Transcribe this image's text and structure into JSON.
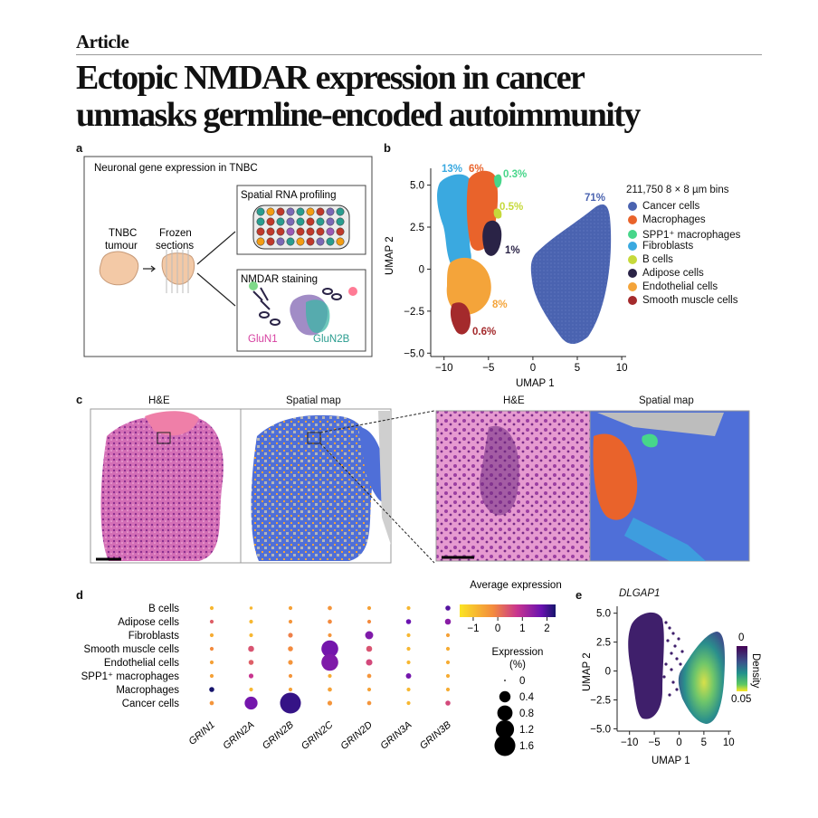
{
  "header": {
    "article_label": "Article",
    "title_line1": "Ectopic NMDAR expression in cancer",
    "title_line2": "unmasks germline-encoded autoimmunity"
  },
  "panel_a": {
    "label": "a",
    "heading": "Neuronal gene expression in TNBC",
    "tumour_line1": "TNBC",
    "tumour_line2": "tumour",
    "frozen_line1": "Frozen",
    "frozen_line2": "sections",
    "spatial_title": "Spatial RNA profiling",
    "nmdar_title": "NMDAR staining",
    "glun1": "GluN1",
    "glun2b": "GluN2B"
  },
  "panel_b": {
    "label": "b",
    "bins_label": "211,750 8 × 8 µm bins",
    "legend": [
      {
        "name": "Cancer cells",
        "color": "#4a63b0"
      },
      {
        "name": "Macrophages",
        "color": "#e9632b"
      },
      {
        "name": "SPP1⁺ macrophages",
        "color": "#47d68a"
      },
      {
        "name": "Fibroblasts",
        "color": "#3aa9e0"
      },
      {
        "name": "B cells",
        "color": "#c6d93b"
      },
      {
        "name": "Adipose cells",
        "color": "#2a2346"
      },
      {
        "name": "Endothelial cells",
        "color": "#f4a43a"
      },
      {
        "name": "Smooth muscle cells",
        "color": "#a42a2c"
      }
    ],
    "percent_labels": {
      "fibroblasts": "13%",
      "macrophages": "6%",
      "spp1": "0.3%",
      "bcells": "0.5%",
      "adipose": "1%",
      "endothelial": "8%",
      "smooth": "0.6%",
      "cancer": "71%"
    },
    "xlabel": "UMAP 1",
    "ylabel": "UMAP 2",
    "xticks": [
      "−10",
      "−5",
      "0",
      "5",
      "10"
    ],
    "yticks": [
      "5.0",
      "2.5",
      "0",
      "−2.5",
      "−5.0"
    ]
  },
  "panel_c": {
    "label": "c",
    "he_title": "H&E",
    "spatial_title": "Spatial map",
    "he_zoom_title": "H&E",
    "spatial_zoom_title": "Spatial map"
  },
  "chart_data": [
    {
      "type": "scatter",
      "title": "",
      "xlabel": "",
      "ylabel": "",
      "categories_x": [
        "GRIN1",
        "GRIN2A",
        "GRIN2B",
        "GRIN2C",
        "GRIN2D",
        "GRIN3A",
        "GRIN3B"
      ],
      "categories_y": [
        "B cells",
        "Adipose cells",
        "Fibroblasts",
        "Smooth muscle cells",
        "Endothelial cells",
        "SPP1⁺ macrophages",
        "Macrophages",
        "Cancer cells"
      ],
      "color_legend_title": "Average expression",
      "color_ticks": [
        "−1",
        "0",
        "1",
        "2"
      ],
      "size_legend_title": "Expression (%)",
      "size_legend_title_line1": "Expression",
      "size_legend_title_line2": "(%)",
      "size_legend": [
        "0",
        "0.4",
        "0.8",
        "1.2",
        "1.6"
      ],
      "size_legend_values": [
        0,
        0.4,
        0.8,
        1.2,
        1.6
      ],
      "points": [
        {
          "gene": "GRIN1",
          "cell": "B cells",
          "pct": 0.02,
          "expr": -0.6
        },
        {
          "gene": "GRIN1",
          "cell": "Adipose cells",
          "pct": 0.02,
          "expr": 0.2
        },
        {
          "gene": "GRIN1",
          "cell": "Fibroblasts",
          "pct": 0.02,
          "expr": -0.5
        },
        {
          "gene": "GRIN1",
          "cell": "Smooth muscle cells",
          "pct": 0.02,
          "expr": -0.2
        },
        {
          "gene": "GRIN1",
          "cell": "Endothelial cells",
          "pct": 0.02,
          "expr": -0.4
        },
        {
          "gene": "GRIN1",
          "cell": "SPP1⁺ macrophages",
          "pct": 0.02,
          "expr": -0.4
        },
        {
          "gene": "GRIN1",
          "cell": "Macrophages",
          "pct": 0.05,
          "expr": 2.3
        },
        {
          "gene": "GRIN1",
          "cell": "Cancer cells",
          "pct": 0.03,
          "expr": -0.3
        },
        {
          "gene": "GRIN2A",
          "cell": "B cells",
          "pct": 0.01,
          "expr": -0.6
        },
        {
          "gene": "GRIN2A",
          "cell": "Adipose cells",
          "pct": 0.02,
          "expr": -0.6
        },
        {
          "gene": "GRIN2A",
          "cell": "Fibroblasts",
          "pct": 0.02,
          "expr": -0.6
        },
        {
          "gene": "GRIN2A",
          "cell": "Smooth muscle cells",
          "pct": 0.08,
          "expr": 0.3
        },
        {
          "gene": "GRIN2A",
          "cell": "Endothelial cells",
          "pct": 0.05,
          "expr": 0.2
        },
        {
          "gene": "GRIN2A",
          "cell": "SPP1⁺ macrophages",
          "pct": 0.04,
          "expr": 0.6
        },
        {
          "gene": "GRIN2A",
          "cell": "Macrophages",
          "pct": 0.02,
          "expr": -0.6
        },
        {
          "gene": "GRIN2A",
          "cell": "Cancer cells",
          "pct": 0.55,
          "expr": 1.4
        },
        {
          "gene": "GRIN2B",
          "cell": "B cells",
          "pct": 0.02,
          "expr": -0.4
        },
        {
          "gene": "GRIN2B",
          "cell": "Adipose cells",
          "pct": 0.02,
          "expr": -0.3
        },
        {
          "gene": "GRIN2B",
          "cell": "Fibroblasts",
          "pct": 0.04,
          "expr": -0.1
        },
        {
          "gene": "GRIN2B",
          "cell": "Smooth muscle cells",
          "pct": 0.05,
          "expr": -0.2
        },
        {
          "gene": "GRIN2B",
          "cell": "Endothelial cells",
          "pct": 0.04,
          "expr": -0.3
        },
        {
          "gene": "GRIN2B",
          "cell": "SPP1⁺ macrophages",
          "pct": 0.02,
          "expr": -0.3
        },
        {
          "gene": "GRIN2B",
          "cell": "Macrophages",
          "pct": 0.02,
          "expr": -0.4
        },
        {
          "gene": "GRIN2B",
          "cell": "Cancer cells",
          "pct": 1.6,
          "expr": 2.0
        },
        {
          "gene": "GRIN2C",
          "cell": "B cells",
          "pct": 0.03,
          "expr": -0.3
        },
        {
          "gene": "GRIN2C",
          "cell": "Adipose cells",
          "pct": 0.03,
          "expr": -0.2
        },
        {
          "gene": "GRIN2C",
          "cell": "Fibroblasts",
          "pct": 0.02,
          "expr": -0.3
        },
        {
          "gene": "GRIN2C",
          "cell": "Smooth muscle cells",
          "pct": 1.0,
          "expr": 1.4
        },
        {
          "gene": "GRIN2C",
          "cell": "Endothelial cells",
          "pct": 1.0,
          "expr": 1.3
        },
        {
          "gene": "GRIN2C",
          "cell": "SPP1⁺ macrophages",
          "pct": 0.02,
          "expr": -0.5
        },
        {
          "gene": "GRIN2C",
          "cell": "Macrophages",
          "pct": 0.03,
          "expr": -0.4
        },
        {
          "gene": "GRIN2C",
          "cell": "Cancer cells",
          "pct": 0.04,
          "expr": -0.3
        },
        {
          "gene": "GRIN2D",
          "cell": "B cells",
          "pct": 0.02,
          "expr": -0.4
        },
        {
          "gene": "GRIN2D",
          "cell": "Adipose cells",
          "pct": 0.02,
          "expr": -0.2
        },
        {
          "gene": "GRIN2D",
          "cell": "Fibroblasts",
          "pct": 0.18,
          "expr": 1.3
        },
        {
          "gene": "GRIN2D",
          "cell": "Smooth muscle cells",
          "pct": 0.08,
          "expr": 0.3
        },
        {
          "gene": "GRIN2D",
          "cell": "Endothelial cells",
          "pct": 0.1,
          "expr": 0.4
        },
        {
          "gene": "GRIN2D",
          "cell": "SPP1⁺ macrophages",
          "pct": 0.03,
          "expr": -0.3
        },
        {
          "gene": "GRIN2D",
          "cell": "Macrophages",
          "pct": 0.02,
          "expr": -0.4
        },
        {
          "gene": "GRIN2D",
          "cell": "Cancer cells",
          "pct": 0.03,
          "expr": -0.3
        },
        {
          "gene": "GRIN3A",
          "cell": "B cells",
          "pct": 0.02,
          "expr": -0.6
        },
        {
          "gene": "GRIN3A",
          "cell": "Adipose cells",
          "pct": 0.05,
          "expr": 1.5
        },
        {
          "gene": "GRIN3A",
          "cell": "Fibroblasts",
          "pct": 0.02,
          "expr": -0.6
        },
        {
          "gene": "GRIN3A",
          "cell": "Smooth muscle cells",
          "pct": 0.02,
          "expr": -0.6
        },
        {
          "gene": "GRIN3A",
          "cell": "Endothelial cells",
          "pct": 0.02,
          "expr": -0.6
        },
        {
          "gene": "GRIN3A",
          "cell": "SPP1⁺ macrophages",
          "pct": 0.06,
          "expr": 1.4
        },
        {
          "gene": "GRIN3A",
          "cell": "Macrophages",
          "pct": 0.02,
          "expr": -0.6
        },
        {
          "gene": "GRIN3A",
          "cell": "Cancer cells",
          "pct": 0.02,
          "expr": -0.6
        },
        {
          "gene": "GRIN3B",
          "cell": "B cells",
          "pct": 0.05,
          "expr": 1.7
        },
        {
          "gene": "GRIN3B",
          "cell": "Adipose cells",
          "pct": 0.08,
          "expr": 1.2
        },
        {
          "gene": "GRIN3B",
          "cell": "Fibroblasts",
          "pct": 0.02,
          "expr": -0.4
        },
        {
          "gene": "GRIN3B",
          "cell": "Smooth muscle cells",
          "pct": 0.02,
          "expr": -0.5
        },
        {
          "gene": "GRIN3B",
          "cell": "Endothelial cells",
          "pct": 0.02,
          "expr": -0.5
        },
        {
          "gene": "GRIN3B",
          "cell": "SPP1⁺ macrophages",
          "pct": 0.02,
          "expr": -0.5
        },
        {
          "gene": "GRIN3B",
          "cell": "Macrophages",
          "pct": 0.02,
          "expr": -0.5
        },
        {
          "gene": "GRIN3B",
          "cell": "Cancer cells",
          "pct": 0.05,
          "expr": 0.4
        }
      ]
    },
    {
      "type": "scatter",
      "title": "DLGAP1",
      "xlabel": "UMAP 1",
      "ylabel": "UMAP 2",
      "xlim": [
        -12.5,
        10.5
      ],
      "ylim": [
        -5.2,
        5.6
      ],
      "xticks": [
        "−10",
        "−5",
        "0",
        "5",
        "10"
      ],
      "yticks": [
        "5.0",
        "2.5",
        "0",
        "−2.5",
        "−5.0"
      ],
      "colorbar_title": "Density",
      "colorbar_ticks": [
        "0",
        "0.05"
      ]
    }
  ],
  "panel_d": {
    "label": "d"
  },
  "panel_e": {
    "label": "e"
  }
}
